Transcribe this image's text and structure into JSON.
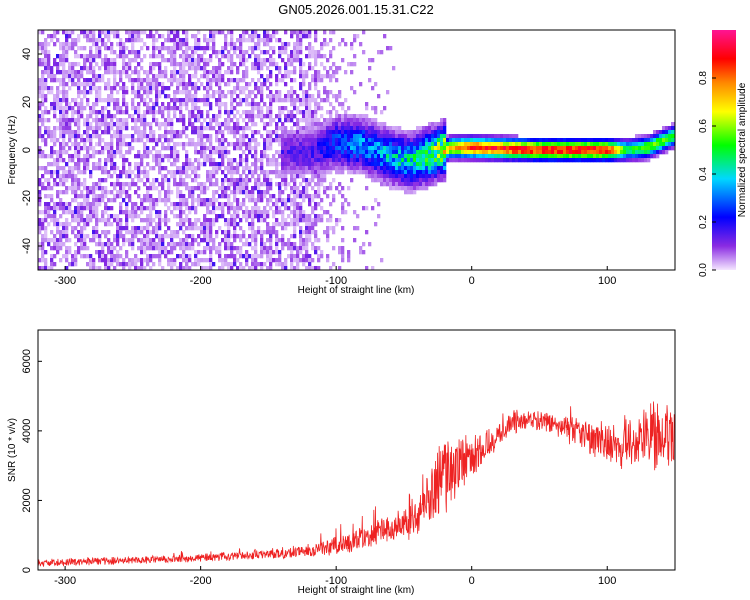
{
  "chart_data": [
    {
      "type": "heatmap",
      "title": "GN05.2026.001.15.31.C22",
      "xlabel": "Height of straight line (km)",
      "ylabel": "Frequency (Hz)",
      "xlim": [
        -320,
        150
      ],
      "ylim": [
        -50,
        50
      ],
      "x_ticks": [
        -300,
        -200,
        -100,
        0,
        100
      ],
      "y_ticks": [
        -40,
        -20,
        0,
        20,
        40
      ],
      "colorbar": {
        "label": "Normalized spectral amplitude",
        "range": [
          0,
          1
        ],
        "ticks": [
          "0.0",
          "0.2",
          "0.4",
          "0.6",
          "0.8"
        ],
        "colormap": [
          "#f0d8ff",
          "#8a2be2",
          "#0000ff",
          "#00d8ff",
          "#00ff00",
          "#ffff00",
          "#ff8800",
          "#ff0000",
          "#ff1493"
        ]
      },
      "features": {
        "noise_region_x": [
          -320,
          -115
        ],
        "sparse_noise_x": [
          -115,
          -55
        ],
        "signal_track": {
          "x": [
            -120,
            -100,
            -80,
            -60,
            -45,
            -30,
            -15,
            0,
            50,
            100,
            115,
            130,
            150
          ],
          "freq": [
            -1,
            3,
            2,
            -3,
            -5,
            -2,
            1,
            1,
            0,
            0,
            0,
            1,
            6
          ],
          "amplitude": [
            0.15,
            0.3,
            0.35,
            0.4,
            0.45,
            0.55,
            0.75,
            0.9,
            0.92,
            0.92,
            0.5,
            0.6,
            0.55
          ]
        }
      }
    },
    {
      "type": "line",
      "xlabel": "Height of straight line (km)",
      "ylabel": "SNR (10 * v/v)",
      "xlim": [
        -320,
        150
      ],
      "ylim": [
        0,
        6900
      ],
      "x_ticks": [
        -300,
        -200,
        -100,
        0,
        100
      ],
      "y_ticks": [
        0,
        2000,
        4000,
        6000
      ],
      "series": [
        {
          "color": "#ee2222",
          "x": [
            -320,
            -250,
            -200,
            -150,
            -120,
            -100,
            -80,
            -60,
            -40,
            -30,
            -25,
            -20,
            -10,
            0,
            10,
            20,
            30,
            40,
            60,
            80,
            100,
            120,
            130,
            150
          ],
          "mean": [
            200,
            280,
            350,
            450,
            550,
            700,
            900,
            1200,
            1600,
            2200,
            2600,
            2700,
            3000,
            3200,
            3600,
            3900,
            4200,
            4350,
            4200,
            3900,
            3700,
            3600,
            3900,
            3800
          ],
          "spread": [
            120,
            120,
            130,
            150,
            200,
            300,
            400,
            500,
            700,
            1000,
            1200,
            1200,
            900,
            700,
            600,
            400,
            350,
            300,
            350,
            500,
            700,
            900,
            1200,
            1000
          ]
        }
      ]
    }
  ]
}
